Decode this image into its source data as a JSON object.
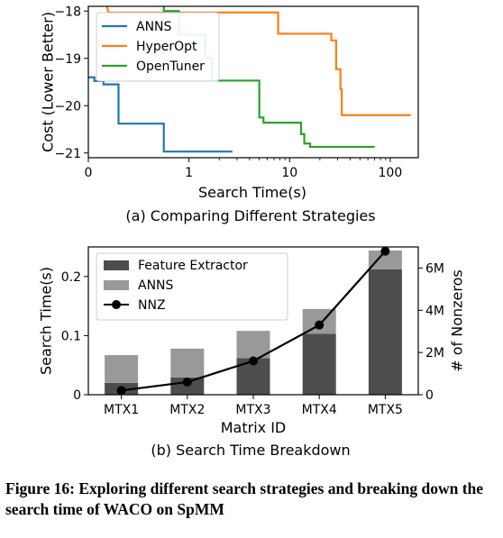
{
  "chart_data": [
    {
      "type": "line",
      "subcaption": "(a) Comparing Different Strategies",
      "xlabel": "Search Time(s)",
      "ylabel": "Cost (Lower Better)",
      "x_scale": "symlog",
      "xticks": [
        "0",
        "1",
        "10",
        "100"
      ],
      "ylim": [
        -21.1,
        -17.9
      ],
      "yticks": [
        "-18",
        "-19",
        "-20",
        "-21"
      ],
      "legend_position": "top-left",
      "series": [
        {
          "name": "ANNS",
          "color": "#1f77b4",
          "points": [
            [
              0,
              -19.4
            ],
            [
              0.06,
              -19.4
            ],
            [
              0.06,
              -19.48
            ],
            [
              0.15,
              -19.48
            ],
            [
              0.15,
              -19.55
            ],
            [
              0.3,
              -19.55
            ],
            [
              0.3,
              -20.38
            ],
            [
              0.75,
              -20.38
            ],
            [
              0.75,
              -20.97
            ],
            [
              2.7,
              -20.97
            ]
          ]
        },
        {
          "name": "HyperOpt",
          "color": "#ff7f0e",
          "points": [
            [
              0.15,
              -17.6
            ],
            [
              0.2,
              -18.03
            ],
            [
              7.7,
              -18.03
            ],
            [
              7.7,
              -18.48
            ],
            [
              26,
              -18.48
            ],
            [
              26,
              -18.62
            ],
            [
              29,
              -18.62
            ],
            [
              29,
              -19.23
            ],
            [
              32,
              -19.23
            ],
            [
              32,
              -19.65
            ],
            [
              33,
              -19.65
            ],
            [
              33,
              -20.2
            ],
            [
              160,
              -20.2
            ]
          ]
        },
        {
          "name": "OpenTuner",
          "color": "#2ca02c",
          "points": [
            [
              0.75,
              -17.7
            ],
            [
              0.75,
              -18.0
            ],
            [
              0.9,
              -18.0
            ],
            [
              0.9,
              -18.5
            ],
            [
              1.45,
              -18.5
            ],
            [
              1.45,
              -19.0
            ],
            [
              1.7,
              -19.0
            ],
            [
              1.7,
              -19.47
            ],
            [
              5,
              -19.47
            ],
            [
              5,
              -20.25
            ],
            [
              5.5,
              -20.25
            ],
            [
              5.5,
              -20.36
            ],
            [
              13,
              -20.36
            ],
            [
              13,
              -20.6
            ],
            [
              14,
              -20.6
            ],
            [
              14,
              -20.8
            ],
            [
              16,
              -20.8
            ],
            [
              16,
              -20.87
            ],
            [
              70,
              -20.87
            ]
          ]
        }
      ]
    },
    {
      "type": "bar",
      "stacked": true,
      "subcaption": "(b) Search Time Breakdown",
      "xlabel": "Matrix ID",
      "ylabel": "Search Time(s)",
      "y2label": "# of Nonzeros",
      "categories": [
        "MTX1",
        "MTX2",
        "MTX3",
        "MTX4",
        "MTX5"
      ],
      "ylim": [
        0,
        0.25
      ],
      "yticks": [
        "0",
        "0.1",
        "0.2"
      ],
      "y2lim": [
        0,
        7000000
      ],
      "y2ticks": [
        "0",
        "2M",
        "4M",
        "6M"
      ],
      "legend_position": "top-left",
      "series": [
        {
          "name": "Feature Extractor",
          "color": "#4d4d4d",
          "values": [
            0.02,
            0.029,
            0.062,
            0.103,
            0.212
          ]
        },
        {
          "name": "ANNS",
          "color": "#999999",
          "values": [
            0.047,
            0.049,
            0.046,
            0.042,
            0.032
          ]
        },
        {
          "name": "NNZ",
          "color": "#000000",
          "axis": "right",
          "values": [
            200000,
            600000,
            1600000,
            3300000,
            6800000
          ]
        }
      ]
    }
  ],
  "caption": "Figure 16: Exploring different search strategies and breaking down the search time of WACO on SpMM"
}
